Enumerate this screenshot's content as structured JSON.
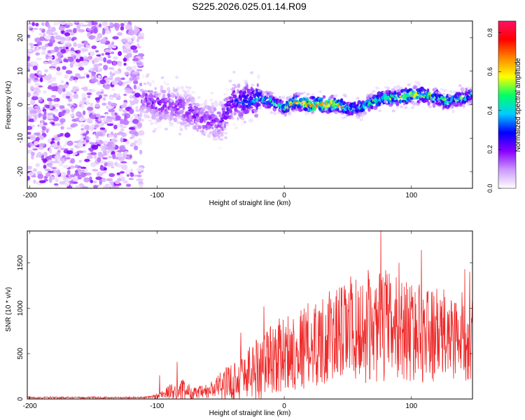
{
  "title": "S225.2026.025.01.14.R09",
  "chart_data": [
    {
      "type": "heatmap",
      "title": "S225.2026.025.01.14.R09",
      "xlabel": "Height of straight line (km)",
      "ylabel": "Frequency (Hz)",
      "xlim": [
        -202,
        148
      ],
      "ylim": [
        -25,
        25
      ],
      "xticks": [
        -200,
        -100,
        0,
        100
      ],
      "yticks": [
        -20,
        -10,
        0,
        10,
        20
      ],
      "colorbar": {
        "label": "Normalized spectral amplitude",
        "range": [
          0.0,
          0.86
        ],
        "ticks": [
          0.0,
          0.2,
          0.4,
          0.6,
          0.8
        ],
        "colormap": [
          "#ffffff",
          "#cc99ff",
          "#8800ff",
          "#0000ff",
          "#00ccff",
          "#00ff66",
          "#ffff00",
          "#ff8800",
          "#ff0000",
          "#ff1166"
        ]
      },
      "ridge": {
        "x": [
          -110,
          -100,
          -90,
          -80,
          -70,
          -60,
          -50,
          -40,
          -30,
          -20,
          -10,
          0,
          10,
          20,
          30,
          40,
          50,
          60,
          70,
          80,
          90,
          100,
          110,
          120,
          130,
          140,
          148
        ],
        "freq": [
          2,
          0,
          0,
          -1,
          -3,
          -5,
          -5,
          1,
          1,
          2,
          1,
          -1,
          1,
          0,
          0,
          0,
          -1,
          -1,
          1,
          2,
          2,
          3,
          3,
          2,
          1,
          2,
          3
        ],
        "amplitude": [
          0.2,
          0.22,
          0.2,
          0.22,
          0.22,
          0.2,
          0.22,
          0.3,
          0.35,
          0.45,
          0.5,
          0.5,
          0.7,
          0.75,
          0.8,
          0.75,
          0.5,
          0.45,
          0.55,
          0.55,
          0.6,
          0.7,
          0.65,
          0.6,
          0.55,
          0.5,
          0.45
        ]
      },
      "noise_region": {
        "x_from": -202,
        "x_to": -112,
        "description_level": 0.15
      }
    },
    {
      "type": "line",
      "xlabel": "Height of straight line (km)",
      "ylabel": "SNR (10 * v/v)",
      "xlim": [
        -202,
        148
      ],
      "ylim": [
        0,
        1850
      ],
      "xticks": [
        -200,
        -100,
        0,
        100
      ],
      "yticks": [
        0,
        500,
        1000,
        1500
      ],
      "series": [
        {
          "name": "SNR",
          "color": "#ee2a2a",
          "envelope_x": [
            -202,
            -150,
            -110,
            -100,
            -90,
            -80,
            -70,
            -60,
            -50,
            -40,
            -30,
            -20,
            -10,
            0,
            10,
            20,
            30,
            40,
            50,
            60,
            70,
            80,
            90,
            100,
            110,
            120,
            130,
            140,
            148
          ],
          "envelope_mean": [
            15,
            15,
            15,
            30,
            80,
            100,
            60,
            80,
            150,
            200,
            280,
            350,
            450,
            500,
            550,
            600,
            650,
            700,
            750,
            750,
            780,
            800,
            780,
            750,
            720,
            700,
            700,
            680,
            700
          ],
          "envelope_amp": [
            10,
            10,
            10,
            30,
            80,
            120,
            70,
            90,
            150,
            220,
            300,
            380,
            400,
            420,
            450,
            480,
            500,
            520,
            550,
            580,
            600,
            620,
            580,
            560,
            540,
            520,
            500,
            500,
            480
          ],
          "peaks": [
            {
              "x": -98,
              "y": 260
            },
            {
              "x": -84,
              "y": 410
            },
            {
              "x": -34,
              "y": 730
            },
            {
              "x": -16,
              "y": 1020
            },
            {
              "x": 30,
              "y": 1100
            },
            {
              "x": 52,
              "y": 1350
            },
            {
              "x": 60,
              "y": 1240
            },
            {
              "x": 66,
              "y": 1420
            },
            {
              "x": 76,
              "y": 1870
            },
            {
              "x": 80,
              "y": 1420
            },
            {
              "x": 90,
              "y": 1500
            },
            {
              "x": 108,
              "y": 1640
            },
            {
              "x": 112,
              "y": 1180
            },
            {
              "x": 142,
              "y": 1430
            },
            {
              "x": 146,
              "y": 1400
            }
          ]
        }
      ]
    }
  ]
}
